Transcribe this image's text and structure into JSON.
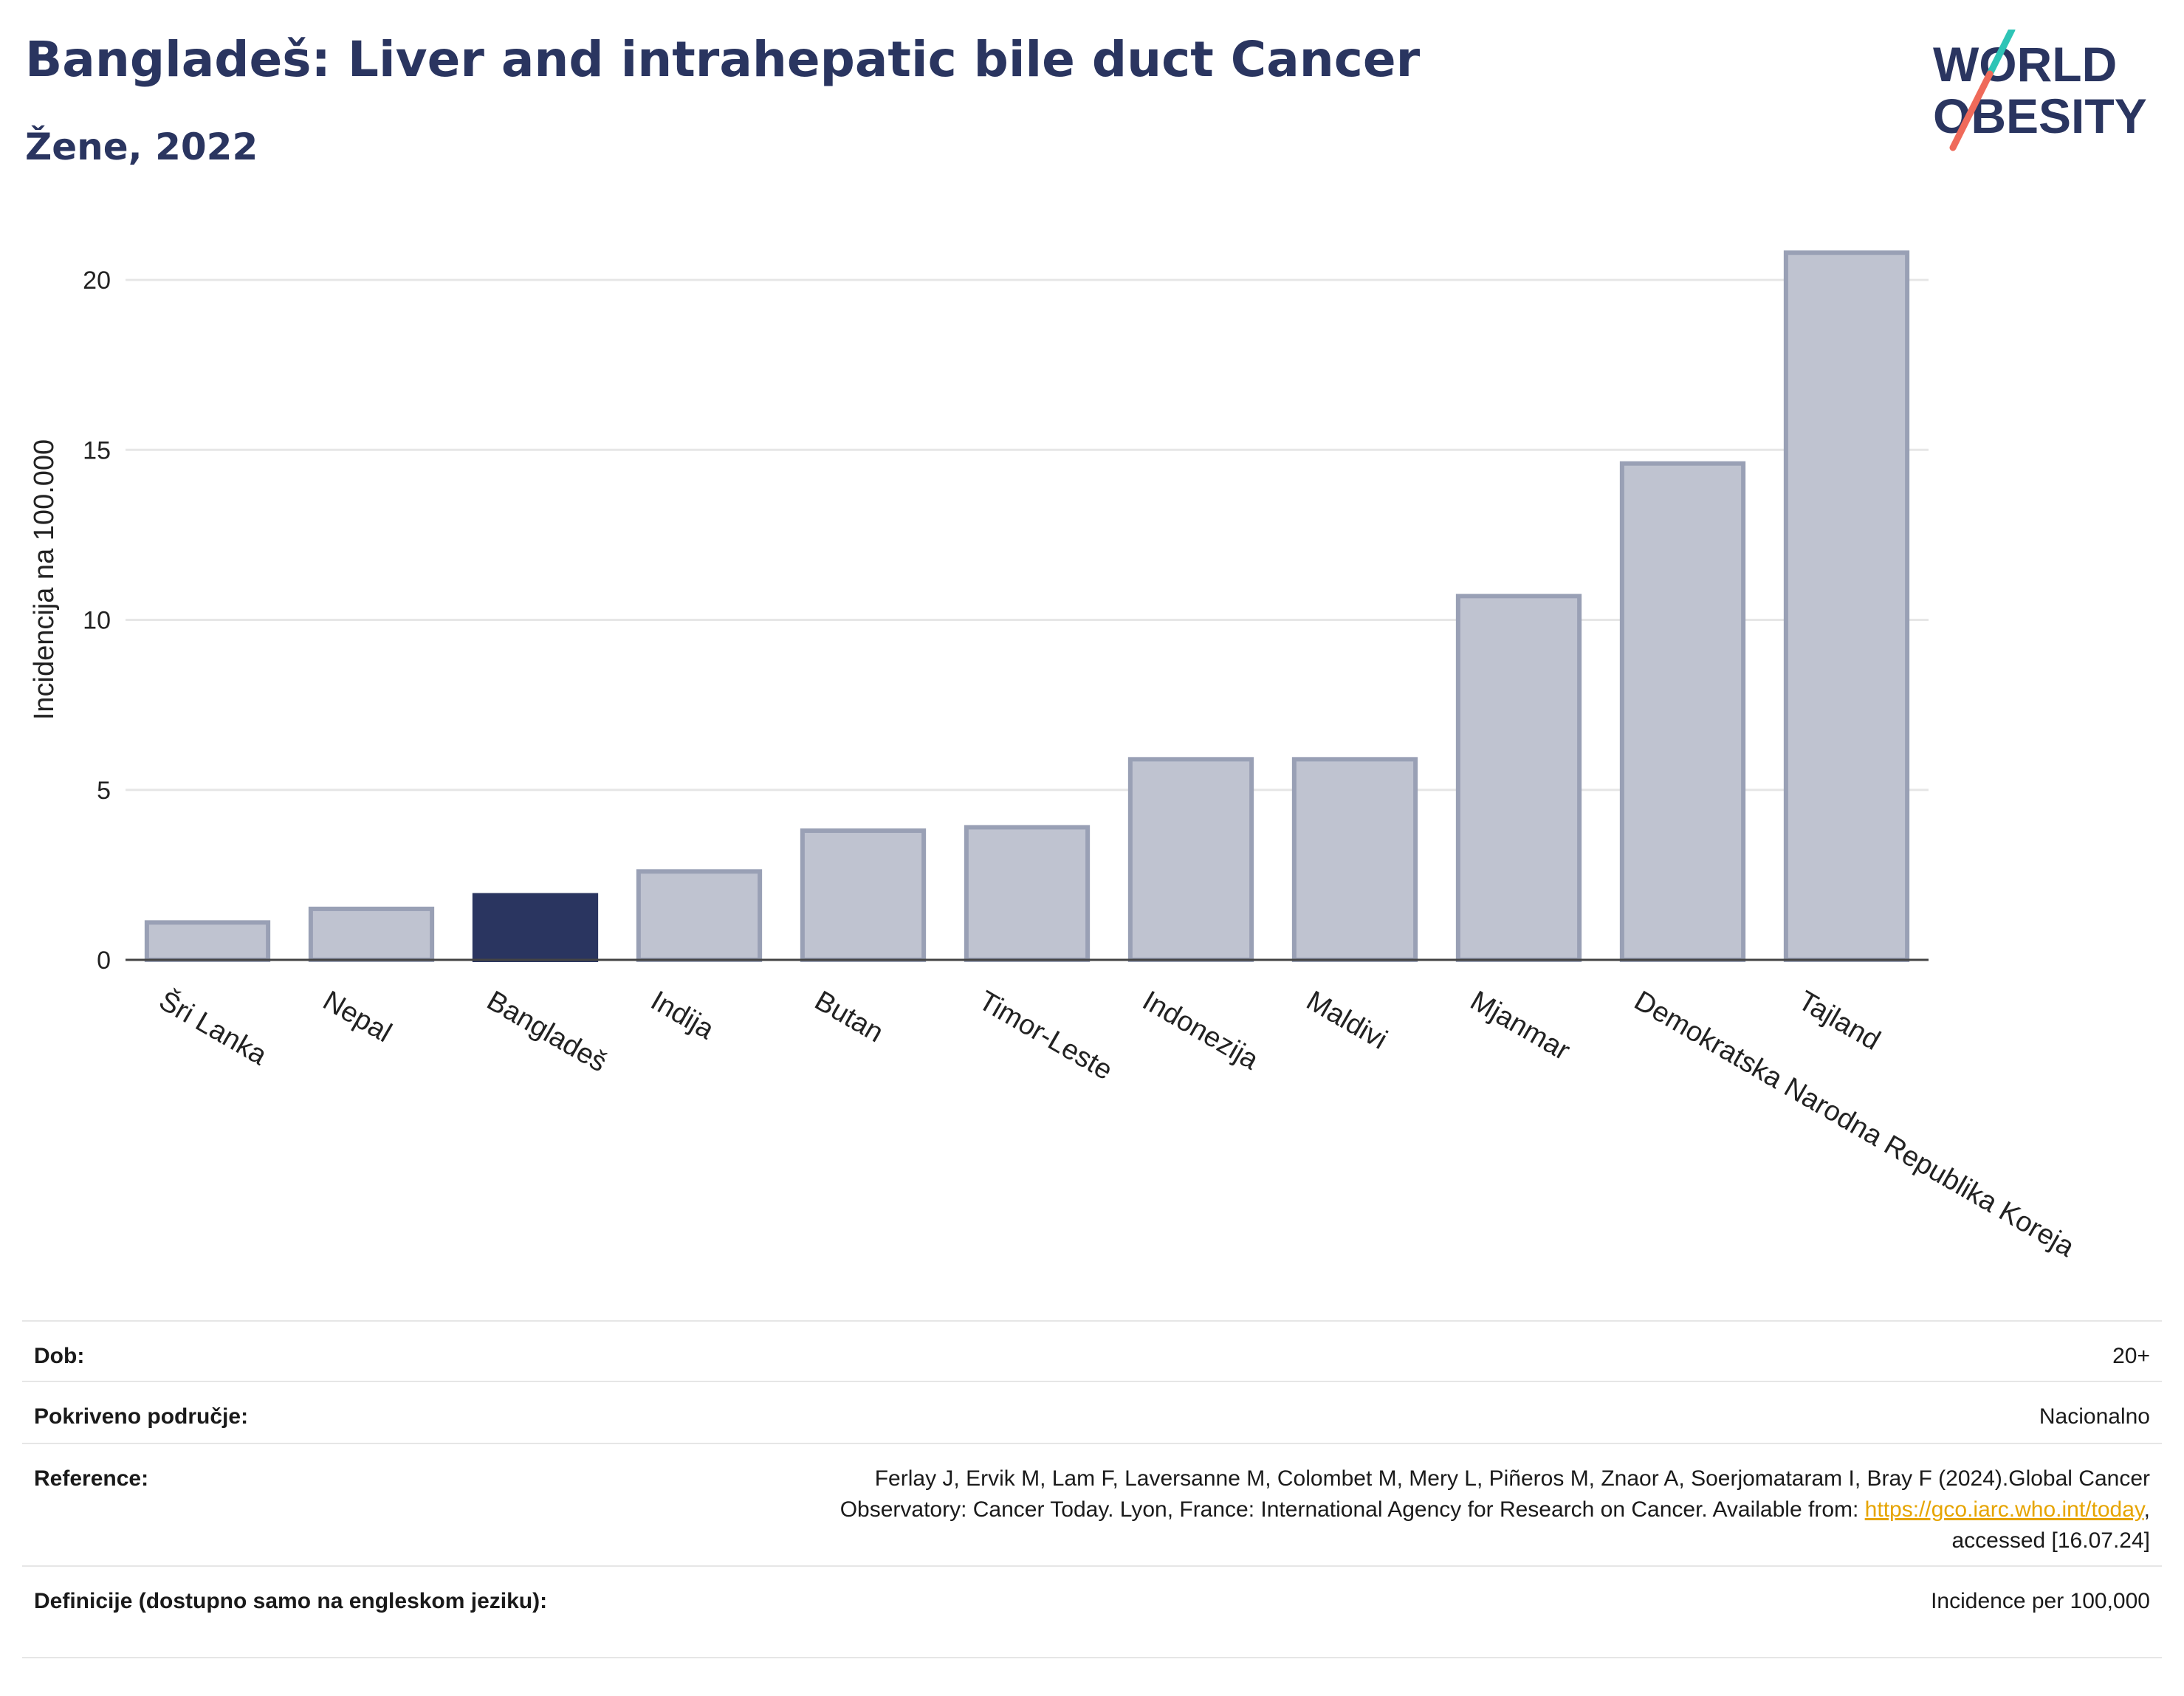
{
  "header": {
    "title": "Bangladeš: Liver and intrahepatic bile duct Cancer",
    "subtitle": "Žene, 2022"
  },
  "logo": {
    "line1": "WORLD",
    "line2": "OBESITY"
  },
  "colors": {
    "highlight": "#2a3560",
    "bar": "#bfc3d0",
    "bar_border": "#99a0b5",
    "grid": "#e6e6e6",
    "logo_text": "#2a3560",
    "logo_slash_top": "#2ec4b6",
    "logo_slash_bottom": "#ef6a5a"
  },
  "chart_data": {
    "type": "bar",
    "categories": [
      "Šri Lanka",
      "Nepal",
      "Bangladeš",
      "Indija",
      "Butan",
      "Timor-Leste",
      "Indonezija",
      "Maldivi",
      "Mjanmar",
      "Demokratska Narodna Republika Koreja",
      "Tajland"
    ],
    "values": [
      1.1,
      1.5,
      1.9,
      2.6,
      3.8,
      3.9,
      5.9,
      5.9,
      10.7,
      14.6,
      20.8
    ],
    "highlight_category": "Bangladeš",
    "ylabel": "Incidencija na 100.000",
    "yticks": [
      0,
      5,
      10,
      15,
      20
    ],
    "ylim": [
      0,
      21.5
    ],
    "grid": true
  },
  "info": {
    "rows": [
      {
        "label": "Dob:",
        "value": "20+"
      },
      {
        "label": "Pokriveno područje:",
        "value": "Nacionalno"
      },
      {
        "label": "Reference:",
        "value_line1": "Ferlay J, Ervik M, Lam F, Laversanne M, Colombet M, Mery L, Piñeros M, Znaor A, Soerjomataram I, Bray F (2024).Global Cancer",
        "value_line2": "Observatory: Cancer Today. Lyon, France: International Agency for Research on Cancer. Available from:",
        "link": "https://gco.iarc.who.int/today",
        "value_line3": "accessed [16.07.24]"
      },
      {
        "label": "Definicije (dostupno samo na engleskom jeziku):",
        "value": "Incidence per 100,000"
      }
    ]
  }
}
